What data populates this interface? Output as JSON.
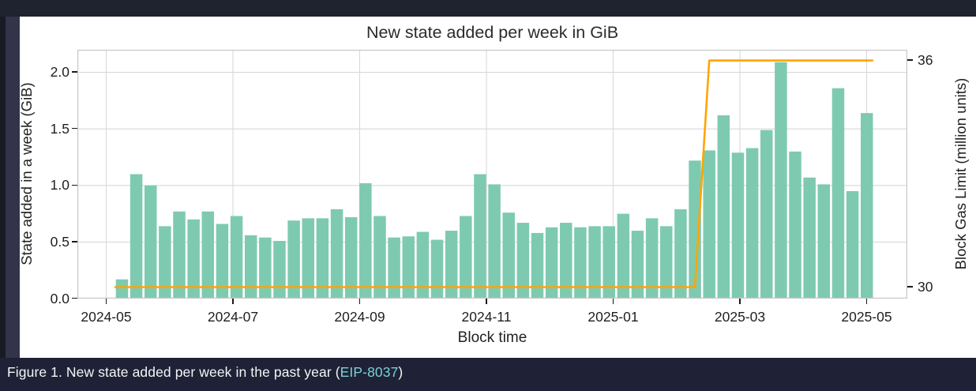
{
  "caption": {
    "prefix": "Figure 1. New state added per week in the past year (",
    "link_text": "EIP-8037",
    "suffix": ")",
    "link_color": "#7cd0d6"
  },
  "chart_data": {
    "type": "bar",
    "title": "New state added per week in GiB",
    "xlabel": "Block time",
    "ylabel_left": "State added in a week (GiB)",
    "ylabel_right": "Block Gas Limit (million units)",
    "x_tick_labels": [
      "2024-05",
      "2024-07",
      "2024-09",
      "2024-11",
      "2025-01",
      "2025-03",
      "2025-05"
    ],
    "y_left_ticks": [
      0.0,
      0.5,
      1.0,
      1.5,
      2.0
    ],
    "y_left_tick_labels": [
      "0.0",
      "0.5",
      "1.0",
      "1.5",
      "2.0"
    ],
    "y_right_ticks": [
      30,
      36
    ],
    "y_right_tick_labels": [
      "30",
      "36"
    ],
    "ylim_left": [
      0,
      2.2
    ],
    "ylim_right": [
      29.7,
      36.3
    ],
    "grid": true,
    "legend": "none",
    "x_unit": "week",
    "series": [
      {
        "name": "State added in a week (GiB)",
        "type": "bar",
        "axis": "left",
        "color": "#7ecab1",
        "values": [
          0.17,
          1.1,
          1.0,
          0.64,
          0.77,
          0.7,
          0.77,
          0.66,
          0.73,
          0.56,
          0.54,
          0.51,
          0.69,
          0.71,
          0.71,
          0.79,
          0.72,
          1.02,
          0.73,
          0.54,
          0.55,
          0.59,
          0.52,
          0.6,
          0.73,
          1.1,
          1.01,
          0.76,
          0.67,
          0.58,
          0.63,
          0.67,
          0.63,
          0.64,
          0.64,
          0.75,
          0.6,
          0.71,
          0.64,
          0.79,
          1.22,
          1.31,
          1.62,
          1.29,
          1.33,
          1.49,
          2.09,
          1.3,
          1.07,
          1.01,
          1.86,
          0.95,
          1.64
        ]
      },
      {
        "name": "Block Gas Limit (million units)",
        "type": "line",
        "axis": "right",
        "color": "#ffa500",
        "values": [
          30,
          30,
          30,
          30,
          30,
          30,
          30,
          30,
          30,
          30,
          30,
          30,
          30,
          30,
          30,
          30,
          30,
          30,
          30,
          30,
          30,
          30,
          30,
          30,
          30,
          30,
          30,
          30,
          30,
          30,
          30,
          30,
          30,
          30,
          30,
          30,
          30,
          30,
          30,
          30,
          30,
          36,
          36,
          36,
          36,
          36,
          36,
          36,
          36,
          36,
          36,
          36,
          36
        ]
      }
    ]
  }
}
